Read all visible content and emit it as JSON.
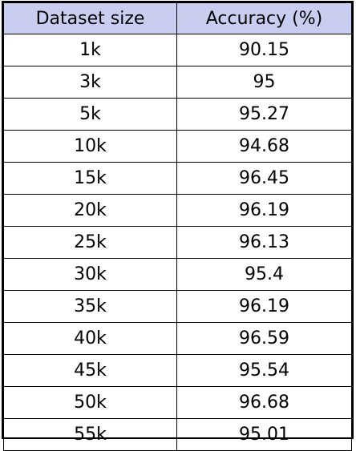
{
  "chart_data": {
    "type": "table",
    "columns": [
      "Dataset size",
      "Accuracy (%)"
    ],
    "rows": [
      [
        "1k",
        "90.15"
      ],
      [
        "3k",
        "95"
      ],
      [
        "5k",
        "95.27"
      ],
      [
        "10k",
        "94.68"
      ],
      [
        "15k",
        "96.45"
      ],
      [
        "20k",
        "96.19"
      ],
      [
        "25k",
        "96.13"
      ],
      [
        "30k",
        "95.4"
      ],
      [
        "35k",
        "96.19"
      ],
      [
        "40k",
        "96.59"
      ],
      [
        "45k",
        "95.54"
      ],
      [
        "50k",
        "96.68"
      ],
      [
        "55k",
        "95.01"
      ]
    ]
  },
  "colors": {
    "header_bg": "#c9cdf0",
    "border": "#000000"
  }
}
